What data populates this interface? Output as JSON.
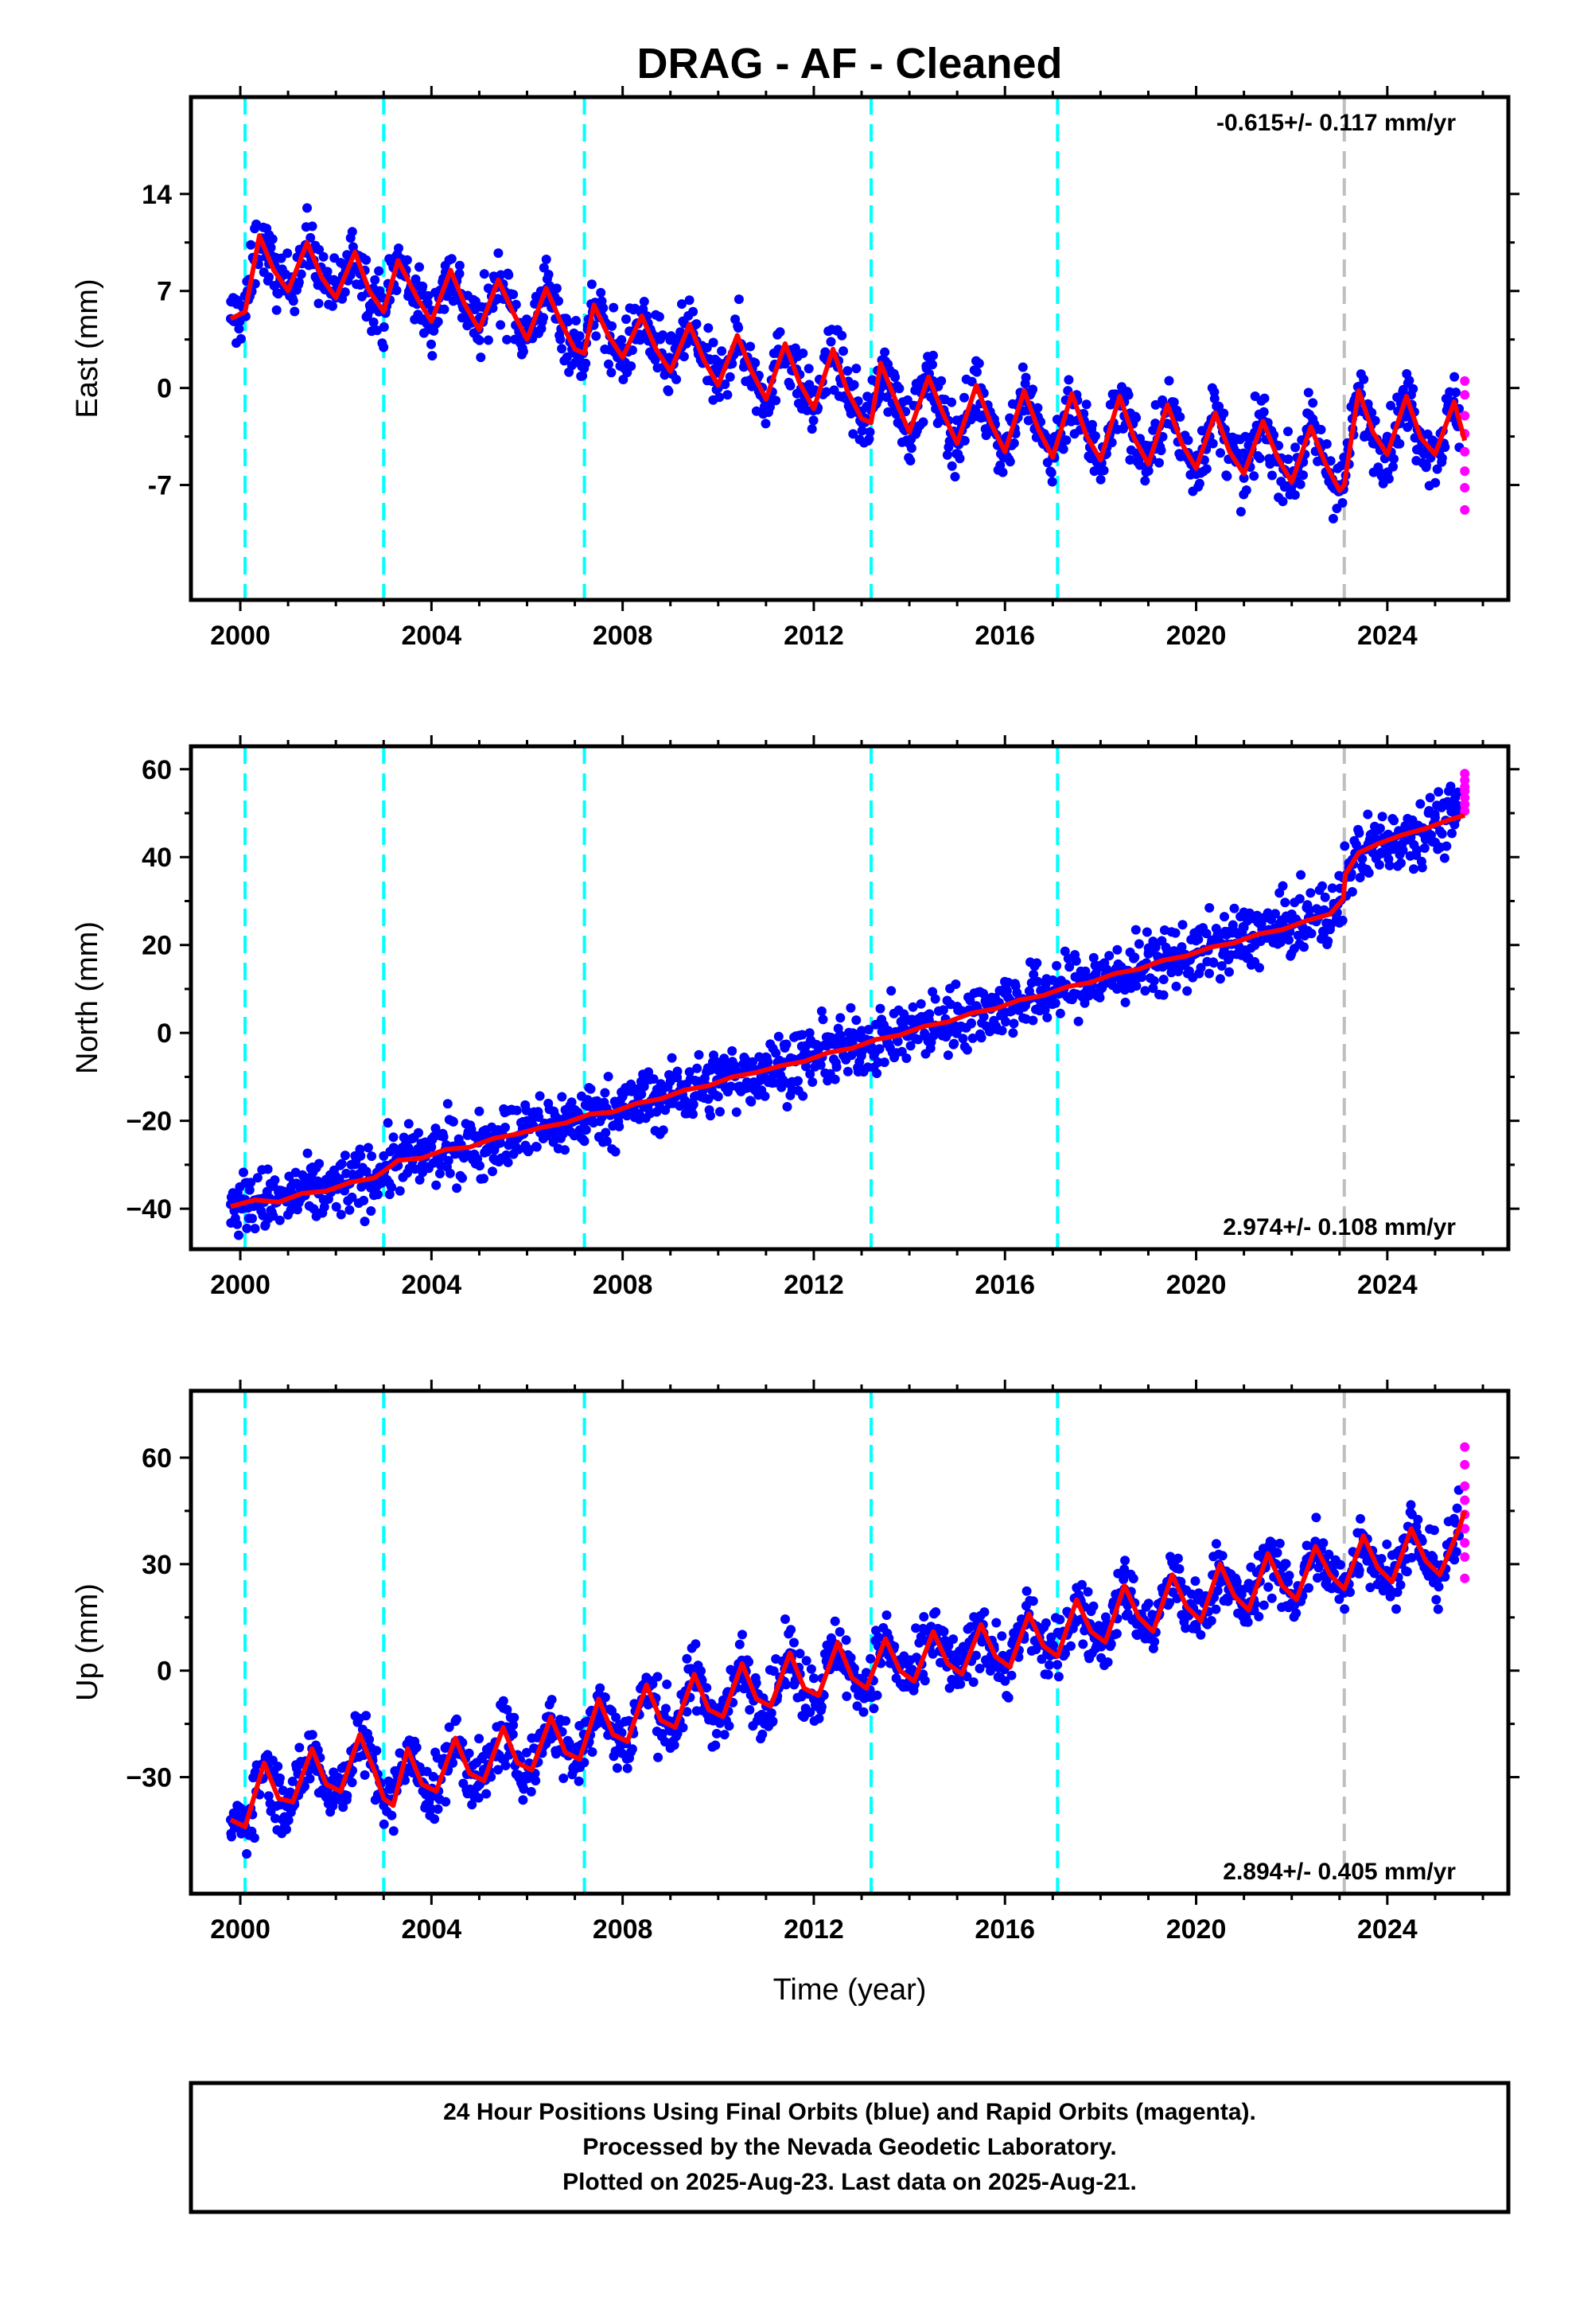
{
  "title": "DRAG  - AF - Cleaned",
  "xlabel": "Time (year)",
  "footer": {
    "line1": "24 Hour Positions Using Final Orbits (blue) and Rapid Orbits (magenta).",
    "line2": "Processed by the Nevada Geodetic Laboratory.",
    "line3": "Plotted on 2025-Aug-23. Last data on 2025-Aug-21."
  },
  "colors": {
    "final_orbits": "#0000ff",
    "rapid_orbits": "#ff00ff",
    "model_fit": "#ff0000",
    "equipment_change": "#00ffff",
    "earthquake": "#bfbfbf"
  },
  "chart_data": [
    {
      "type": "scatter",
      "ylabel": "East (mm)",
      "rate": "-0.615+/- 0.117 mm/yr",
      "rate_position": "top-right",
      "xlim": [
        1999.4,
        2026.1
      ],
      "ylim": [
        -13.8,
        19.5
      ],
      "xticks": [
        2000,
        2004,
        2008,
        2012,
        2016,
        2020,
        2024
      ],
      "xtick_labels": [
        "2000",
        "2004",
        "2008",
        "2012",
        "2016",
        "2020",
        "2024"
      ],
      "yticks": [
        -7,
        0,
        7,
        14
      ],
      "ytick_labels": [
        "-7",
        "0",
        "7",
        "14"
      ],
      "equipment_changes": [
        2000.1,
        2003.0,
        2007.2,
        2013.2,
        2017.1
      ],
      "earthquakes": [
        2023.1
      ],
      "series": [
        {
          "role": "final",
          "x": [
            1999.8,
            2000.0,
            2000.3,
            2000.6,
            2001.0,
            2001.5,
            2002.0,
            2002.5,
            2002.9,
            2003.3,
            2003.8,
            2004.3,
            2005.0,
            2005.5,
            2006.0,
            2006.5,
            2007.0,
            2007.5,
            2008.0,
            2008.5,
            2009.0,
            2009.5,
            2010.0,
            2010.5,
            2011.0,
            2011.5,
            2012.0,
            2012.5,
            2013.0,
            2013.5,
            2014.0,
            2014.5,
            2015.0,
            2015.5,
            2016.0,
            2016.5,
            2017.0,
            2017.5,
            2018.0,
            2018.5,
            2019.0,
            2019.5,
            2020.0,
            2020.5,
            2021.0,
            2021.5,
            2022.0,
            2022.5,
            2023.0,
            2023.3,
            2023.6,
            2024.0,
            2024.5,
            2025.0,
            2025.5
          ],
          "y": [
            5.0,
            6.0,
            11.5,
            8.0,
            7.0,
            10.0,
            6.5,
            9.5,
            5.5,
            9.0,
            5.0,
            8.0,
            5.0,
            7.5,
            3.5,
            6.5,
            2.5,
            5.5,
            2.0,
            4.0,
            1.5,
            3.5,
            0.0,
            3.0,
            -1.0,
            2.5,
            -1.5,
            1.5,
            -2.5,
            1.0,
            -3.0,
            0.5,
            -4.0,
            0.0,
            -4.5,
            -0.5,
            -5.0,
            -0.5,
            -5.0,
            -1.0,
            -5.5,
            -1.0,
            -6.0,
            -2.0,
            -6.5,
            -2.5,
            -7.0,
            -3.0,
            -7.0,
            -1.0,
            -1.5,
            -3.5,
            -0.5,
            -4.0,
            -1.5
          ]
        },
        {
          "role": "rapid",
          "x": [
            2025.62,
            2025.62,
            2025.62,
            2025.62,
            2025.62,
            2025.62,
            2025.62,
            2025.62
          ],
          "y": [
            -8.8,
            -7.2,
            -6.0,
            -4.6,
            -3.3,
            -2.0,
            -0.5,
            0.5
          ]
        },
        {
          "role": "model",
          "x": [
            1999.8,
            2000.1,
            2000.4,
            2000.7,
            2001.0,
            2001.4,
            2001.7,
            2002.0,
            2002.4,
            2002.7,
            2003.0,
            2003.3,
            2003.7,
            2004.0,
            2004.4,
            2004.7,
            2005.0,
            2005.4,
            2005.7,
            2006.0,
            2006.4,
            2006.7,
            2007.0,
            2007.2,
            2007.4,
            2007.7,
            2008.0,
            2008.4,
            2008.7,
            2009.0,
            2009.4,
            2009.7,
            2010.0,
            2010.4,
            2010.7,
            2011.0,
            2011.4,
            2011.7,
            2012.0,
            2012.4,
            2012.7,
            2013.0,
            2013.2,
            2013.4,
            2013.7,
            2014.0,
            2014.4,
            2014.7,
            2015.0,
            2015.4,
            2015.7,
            2016.0,
            2016.4,
            2016.7,
            2017.0,
            2017.4,
            2017.7,
            2018.0,
            2018.4,
            2018.7,
            2019.0,
            2019.4,
            2019.7,
            2020.0,
            2020.4,
            2020.7,
            2021.0,
            2021.4,
            2021.7,
            2022.0,
            2022.4,
            2022.7,
            2023.0,
            2023.1,
            2023.4,
            2023.7,
            2024.0,
            2024.4,
            2024.7,
            2025.0,
            2025.4,
            2025.62
          ],
          "y": [
            5.0,
            5.5,
            11.0,
            8.5,
            7.0,
            10.5,
            8.0,
            6.5,
            9.8,
            7.0,
            5.5,
            9.2,
            6.5,
            4.8,
            8.5,
            6.0,
            4.2,
            7.8,
            5.5,
            3.5,
            7.2,
            4.8,
            2.8,
            2.5,
            6.0,
            3.8,
            2.2,
            5.2,
            2.8,
            1.2,
            4.6,
            2.0,
            0.2,
            3.8,
            1.2,
            -0.8,
            3.2,
            0.4,
            -1.5,
            2.8,
            -0.2,
            -2.2,
            -2.5,
            1.8,
            -0.8,
            -3.2,
            0.8,
            -1.8,
            -4.0,
            0.2,
            -2.5,
            -4.6,
            -0.2,
            -3.0,
            -5.0,
            -0.4,
            -3.4,
            -5.2,
            -0.6,
            -3.6,
            -5.5,
            -1.2,
            -4.0,
            -5.8,
            -1.8,
            -4.6,
            -6.2,
            -2.4,
            -5.0,
            -6.8,
            -2.8,
            -5.4,
            -7.4,
            -7.0,
            -0.2,
            -3.2,
            -4.8,
            -0.6,
            -3.6,
            -4.8,
            -1.0,
            -3.8
          ]
        }
      ]
    },
    {
      "type": "scatter",
      "ylabel": "North (mm)",
      "rate": "2.974+/- 0.108 mm/yr",
      "rate_position": "bottom-right",
      "xlim": [
        1999.4,
        2026.1
      ],
      "ylim": [
        -44.5,
        60.5
      ],
      "xticks": [
        2000,
        2004,
        2008,
        2012,
        2016,
        2020,
        2024
      ],
      "xtick_labels": [
        "2000",
        "2004",
        "2008",
        "2012",
        "2016",
        "2020",
        "2024"
      ],
      "yticks": [
        -40,
        -20,
        0,
        20,
        40,
        60
      ],
      "ytick_labels": [
        "−40",
        "−20",
        "0",
        "20",
        "40",
        "60"
      ],
      "equipment_changes": [
        2000.1,
        2003.0,
        2007.2,
        2013.2,
        2017.1
      ],
      "earthquakes": [
        2023.1
      ],
      "series": [
        {
          "role": "final",
          "x": [
            1999.8,
            2000.5,
            2001.0,
            2001.5,
            2002.0,
            2002.5,
            2003.0,
            2003.5,
            2004.0,
            2005.0,
            2006.0,
            2007.0,
            2008.0,
            2009.0,
            2010.0,
            2011.0,
            2012.0,
            2013.0,
            2014.0,
            2015.0,
            2016.0,
            2017.0,
            2018.0,
            2019.0,
            2020.0,
            2021.0,
            2022.0,
            2023.0,
            2023.2,
            2023.6,
            2024.0,
            2024.5,
            2025.0,
            2025.5
          ],
          "y": [
            -39.0,
            -38.5,
            -37.0,
            -35.5,
            -33.5,
            -32.0,
            -28.0,
            -27.5,
            -26.0,
            -23.5,
            -20.0,
            -17.5,
            -14.5,
            -11.0,
            -8.5,
            -5.5,
            -2.5,
            0.5,
            3.0,
            6.0,
            9.0,
            12.0,
            15.0,
            18.0,
            21.0,
            24.0,
            27.0,
            30.0,
            38.0,
            43.0,
            45.0,
            47.0,
            49.0,
            51.0
          ]
        },
        {
          "role": "rapid",
          "x": [
            2025.62,
            2025.62,
            2025.62,
            2025.62,
            2025.62,
            2025.62,
            2025.62
          ],
          "y": [
            50.5,
            52.0,
            53.5,
            55.0,
            56.0,
            57.5,
            59.0
          ]
        },
        {
          "role": "model",
          "x": [
            1999.8,
            2000.3,
            2000.8,
            2001.3,
            2001.8,
            2002.3,
            2002.8,
            2003.0,
            2003.3,
            2003.8,
            2004.3,
            2004.8,
            2005.3,
            2005.8,
            2006.3,
            2006.8,
            2007.3,
            2007.8,
            2008.3,
            2008.8,
            2009.3,
            2009.8,
            2010.3,
            2010.8,
            2011.3,
            2011.8,
            2012.3,
            2012.8,
            2013.3,
            2013.8,
            2014.3,
            2014.8,
            2015.3,
            2015.8,
            2016.3,
            2016.8,
            2017.3,
            2017.8,
            2018.3,
            2018.8,
            2019.3,
            2019.8,
            2020.3,
            2020.8,
            2021.3,
            2021.8,
            2022.3,
            2022.8,
            2023.08,
            2023.12,
            2023.4,
            2023.8,
            2024.3,
            2024.8,
            2025.3,
            2025.62
          ],
          "y": [
            -39.5,
            -38.0,
            -38.5,
            -36.5,
            -36.0,
            -34.0,
            -33.0,
            -31.5,
            -29.0,
            -28.5,
            -26.5,
            -26.0,
            -24.0,
            -23.0,
            -21.5,
            -20.5,
            -18.5,
            -18.0,
            -16.0,
            -15.0,
            -13.0,
            -12.0,
            -10.0,
            -9.0,
            -7.5,
            -6.5,
            -4.5,
            -3.5,
            -1.5,
            -0.5,
            1.5,
            2.5,
            4.5,
            5.5,
            7.5,
            8.5,
            10.5,
            11.5,
            13.5,
            14.5,
            16.5,
            17.5,
            19.5,
            20.5,
            22.5,
            23.5,
            25.5,
            27.0,
            30.5,
            36.0,
            41.0,
            43.0,
            45.0,
            46.5,
            48.5,
            49.5
          ]
        }
      ]
    },
    {
      "type": "scatter",
      "ylabel": "Up (mm)",
      "rate": "2.894+/- 0.405 mm/yr",
      "rate_position": "bottom-right",
      "xlim": [
        1999.4,
        2026.1
      ],
      "ylim": [
        -57.0,
        73.0
      ],
      "xticks": [
        2000,
        2004,
        2008,
        2012,
        2016,
        2020,
        2024
      ],
      "xtick_labels": [
        "2000",
        "2004",
        "2008",
        "2012",
        "2016",
        "2020",
        "2024"
      ],
      "yticks": [
        -30,
        0,
        30,
        60
      ],
      "ytick_labels": [
        "−30",
        "0",
        "30",
        "60"
      ],
      "equipment_changes": [
        2000.1,
        2003.0,
        2007.2,
        2013.2,
        2017.1
      ],
      "earthquakes": [
        2023.1
      ],
      "series": [
        {
          "role": "final",
          "x": [
            1999.8,
            2000.3,
            2000.6,
            2001.0,
            2001.5,
            2002.0,
            2002.5,
            2003.0,
            2003.5,
            2004.0,
            2004.5,
            2005.0,
            2005.5,
            2006.0,
            2006.5,
            2007.0,
            2007.5,
            2008.0,
            2008.5,
            2009.0,
            2009.5,
            2010.0,
            2010.5,
            2011.0,
            2011.5,
            2012.0,
            2012.5,
            2013.0,
            2013.5,
            2014.0,
            2014.5,
            2015.0,
            2015.5,
            2016.0,
            2016.5,
            2017.0,
            2017.5,
            2018.0,
            2018.5,
            2019.0,
            2019.5,
            2020.0,
            2020.5,
            2021.0,
            2021.5,
            2022.0,
            2022.5,
            2023.0,
            2023.5,
            2024.0,
            2024.5,
            2025.0,
            2025.5
          ],
          "y": [
            -42.0,
            -30.0,
            -26.0,
            -38.0,
            -22.0,
            -35.0,
            -20.0,
            -38.0,
            -24.0,
            -34.0,
            -20.0,
            -32.0,
            -16.0,
            -30.0,
            -13.0,
            -27.0,
            -8.0,
            -20.0,
            -4.0,
            -17.0,
            -1.0,
            -14.0,
            2.0,
            -10.0,
            5.0,
            -8.0,
            7.0,
            -5.0,
            9.0,
            -3.0,
            11.0,
            0.0,
            13.0,
            3.0,
            16.0,
            5.0,
            20.0,
            8.0,
            23.0,
            11.0,
            26.0,
            13.0,
            29.0,
            16.0,
            32.0,
            19.0,
            35.0,
            23.0,
            37.0,
            25.0,
            40.0,
            27.0,
            38.0
          ]
        },
        {
          "role": "rapid",
          "x": [
            2025.62,
            2025.62,
            2025.62,
            2025.62,
            2025.62,
            2025.62,
            2025.62,
            2025.62,
            2025.62
          ],
          "y": [
            26.0,
            32.0,
            36.0,
            40.0,
            44.0,
            48.0,
            52.0,
            58.0,
            63.0
          ]
        },
        {
          "role": "model",
          "x": [
            1999.8,
            2000.1,
            2000.5,
            2000.8,
            2001.1,
            2001.5,
            2001.8,
            2002.1,
            2002.5,
            2002.8,
            2003.0,
            2003.2,
            2003.5,
            2003.8,
            2004.1,
            2004.5,
            2004.8,
            2005.1,
            2005.5,
            2005.8,
            2006.1,
            2006.5,
            2006.8,
            2007.1,
            2007.5,
            2007.8,
            2008.1,
            2008.5,
            2008.8,
            2009.1,
            2009.5,
            2009.8,
            2010.1,
            2010.5,
            2010.8,
            2011.1,
            2011.5,
            2011.8,
            2012.1,
            2012.5,
            2012.8,
            2013.1,
            2013.5,
            2013.8,
            2014.1,
            2014.5,
            2014.8,
            2015.1,
            2015.5,
            2015.8,
            2016.1,
            2016.5,
            2016.8,
            2017.1,
            2017.5,
            2017.8,
            2018.1,
            2018.5,
            2018.8,
            2019.1,
            2019.5,
            2019.8,
            2020.1,
            2020.5,
            2020.8,
            2021.1,
            2021.5,
            2021.8,
            2022.1,
            2022.5,
            2022.8,
            2023.1,
            2023.5,
            2023.8,
            2024.1,
            2024.5,
            2024.8,
            2025.1,
            2025.5,
            2025.62
          ],
          "y": [
            -42.0,
            -44.0,
            -26.0,
            -36.0,
            -37.0,
            -22.0,
            -32.0,
            -34.0,
            -18.0,
            -28.0,
            -36.0,
            -38.0,
            -22.0,
            -32.0,
            -34.0,
            -19.0,
            -29.0,
            -31.0,
            -16.0,
            -26.0,
            -28.0,
            -13.0,
            -23.0,
            -25.0,
            -8.0,
            -18.0,
            -20.0,
            -4.0,
            -14.0,
            -16.0,
            -1.0,
            -11.0,
            -13.0,
            2.0,
            -8.0,
            -10.0,
            5.0,
            -5.0,
            -7.0,
            8.0,
            -2.0,
            -5.0,
            9.0,
            0.0,
            -3.0,
            11.0,
            2.0,
            -1.0,
            13.0,
            4.0,
            1.0,
            16.0,
            7.0,
            4.0,
            20.0,
            11.0,
            8.0,
            24.0,
            15.0,
            11.0,
            27.0,
            18.0,
            14.0,
            30.0,
            21.0,
            17.0,
            33.0,
            24.0,
            20.0,
            35.0,
            27.0,
            23.0,
            38.0,
            29.0,
            25.0,
            40.0,
            31.0,
            27.0,
            40.0,
            45.0
          ]
        }
      ]
    }
  ]
}
